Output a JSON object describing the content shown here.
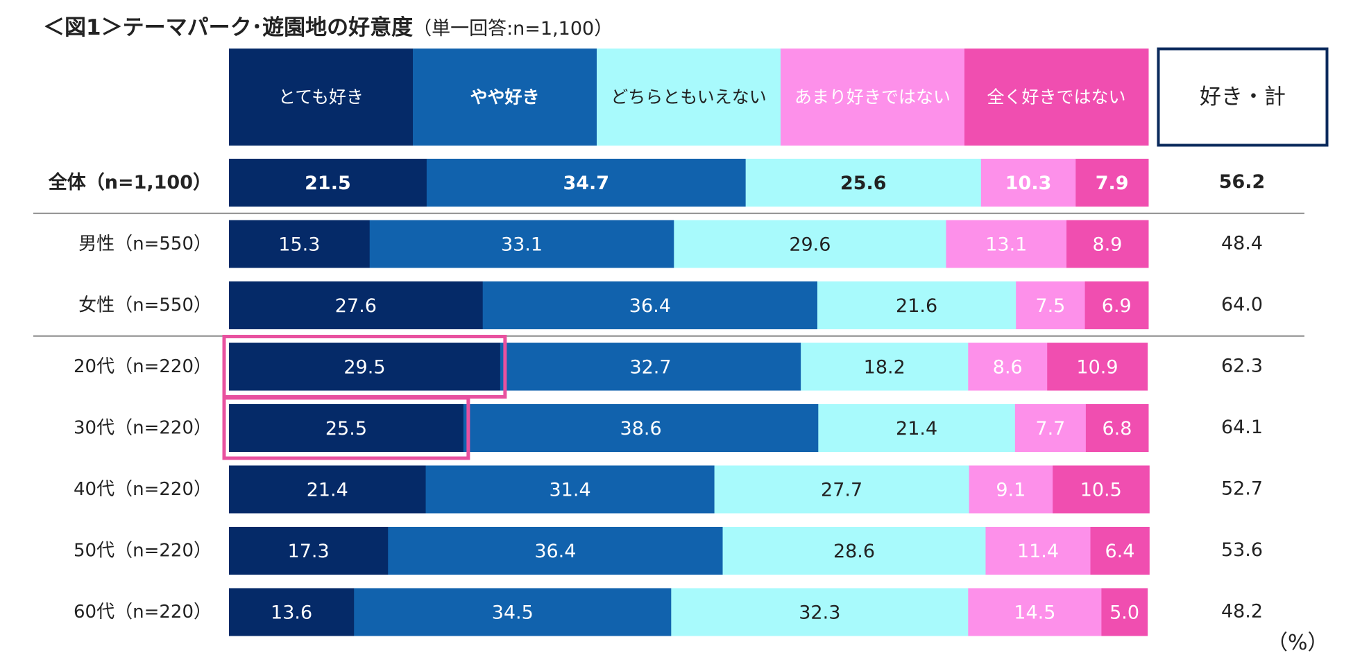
{
  "title": {
    "main": "＜図1＞テーマパーク･遊園地の好意度",
    "sub": "（単一回答:n=1,100）"
  },
  "unit_label": "（%）",
  "chart_data": {
    "type": "bar",
    "orientation": "horizontal",
    "stacked": true,
    "title": "＜図1＞テーマパーク･遊園地の好意度",
    "xlim": [
      0,
      100
    ],
    "categories": [
      "全体（n=1,100）",
      "男性（n=550）",
      "女性（n=550）",
      "20代（n=220）",
      "30代（n=220）",
      "40代（n=220）",
      "50代（n=220）",
      "60代（n=220）"
    ],
    "series": [
      {
        "name": "とても好き",
        "color": "#052a68",
        "label_color": "#ffffff",
        "values": [
          21.5,
          15.3,
          27.6,
          29.5,
          25.5,
          21.4,
          17.3,
          13.6
        ]
      },
      {
        "name": "やや好き",
        "color": "#1162ad",
        "label_color": "#ffffff",
        "values": [
          34.7,
          33.1,
          36.4,
          32.7,
          38.6,
          31.4,
          36.4,
          34.5
        ]
      },
      {
        "name": "どちらともいえない",
        "color": "#a8fafc",
        "label_color": "#222222",
        "values": [
          25.6,
          29.6,
          21.6,
          18.2,
          21.4,
          27.7,
          28.6,
          32.3
        ]
      },
      {
        "name": "あまり好きではない",
        "color": "#fd90ea",
        "label_color": "#ffffff",
        "values": [
          10.3,
          13.1,
          7.5,
          8.6,
          7.7,
          9.1,
          11.4,
          14.5
        ]
      },
      {
        "name": "全く好きではない",
        "color": "#f04eb0",
        "label_color": "#ffffff",
        "values": [
          7.9,
          8.9,
          6.9,
          10.9,
          6.8,
          10.5,
          6.4,
          5.0
        ]
      }
    ],
    "total": {
      "name": "好き・計",
      "values": [
        56.2,
        48.4,
        64.0,
        62.3,
        64.1,
        52.7,
        53.6,
        48.2
      ]
    },
    "bold_rows": [
      "全体（n=1,100）"
    ],
    "highlights": [
      {
        "row": "20代（n=220）",
        "series": "とても好き",
        "color": "#e8519f"
      },
      {
        "row": "30代（n=220）",
        "series": "とても好き",
        "color": "#e8519f"
      }
    ],
    "group_separators_after": [
      "全体（n=1,100）",
      "女性（n=550）"
    ],
    "legend_position": "top"
  }
}
